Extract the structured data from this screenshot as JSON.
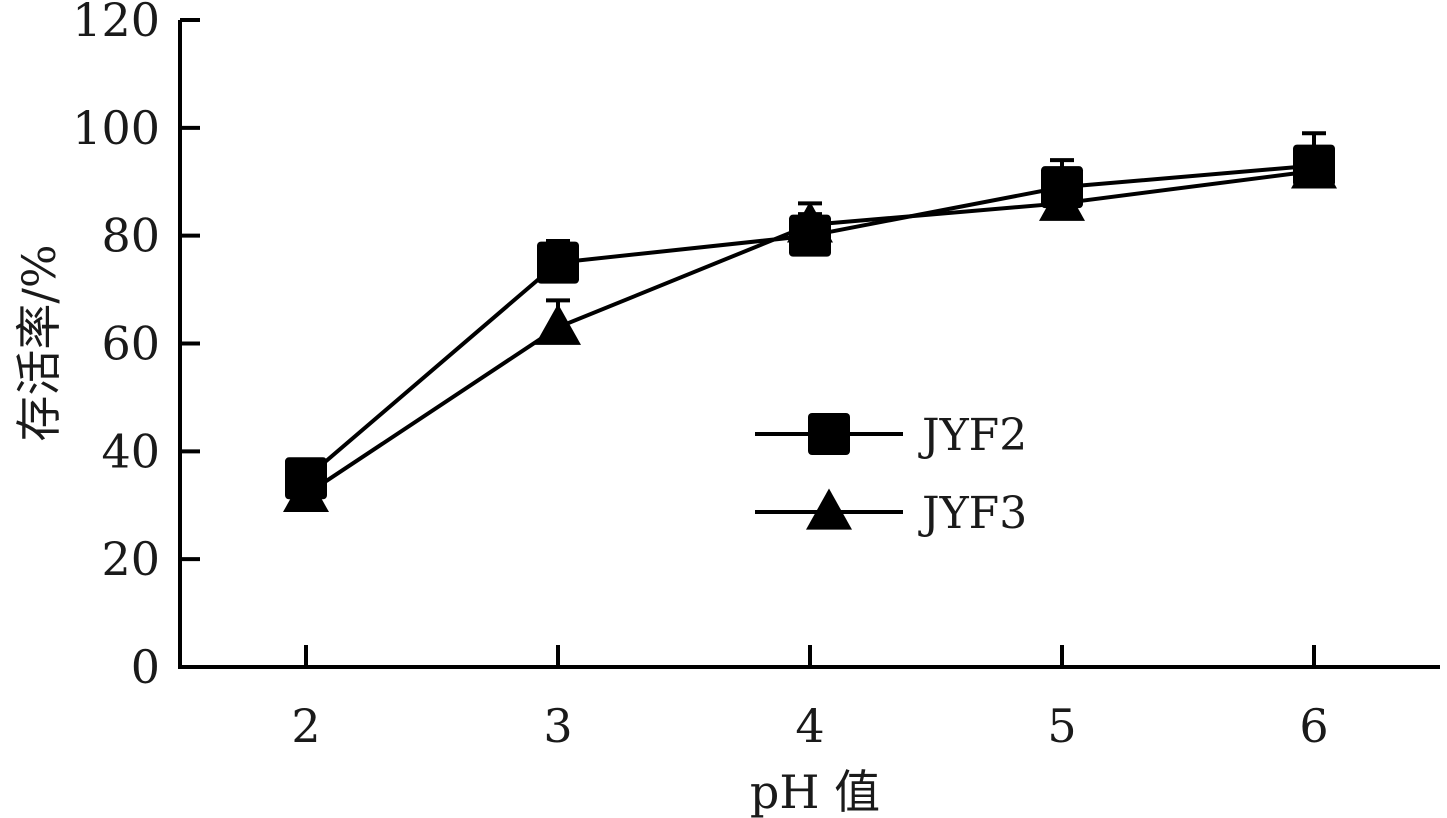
{
  "chart_data": {
    "type": "line",
    "xlabel": "pH 值",
    "ylabel": "存活率/%",
    "x": [
      2,
      3,
      4,
      5,
      6
    ],
    "xlim": [
      1.5,
      6.5
    ],
    "ylim": [
      0,
      120
    ],
    "yticks": [
      0,
      20,
      40,
      60,
      80,
      100,
      120
    ],
    "xticks": [
      2,
      3,
      4,
      5,
      6
    ],
    "grid": false,
    "legend_position": "center-right",
    "series": [
      {
        "name": "JYF2",
        "marker": "square",
        "values": [
          35,
          75,
          80,
          89,
          93
        ],
        "error": [
          0,
          4,
          4,
          5,
          6
        ]
      },
      {
        "name": "JYF3",
        "marker": "triangle",
        "values": [
          32,
          63,
          82,
          86,
          92
        ],
        "error": [
          0,
          5,
          4,
          3,
          4
        ]
      }
    ],
    "colors": {
      "marks": "#000000",
      "text": "#1a1a1a"
    }
  }
}
